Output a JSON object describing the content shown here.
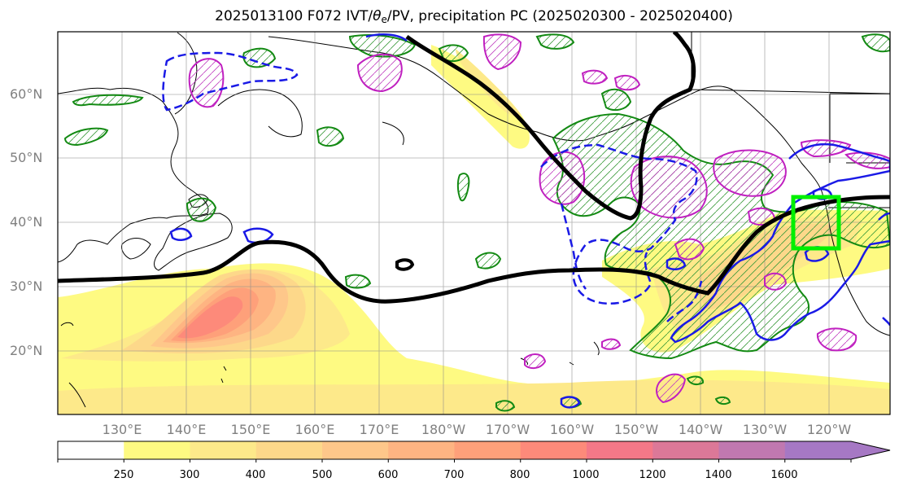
{
  "title": {
    "prefix": "2025013100 F072 IVT/",
    "theta": "θ",
    "sub": "e",
    "suffix": "/PV, precipitation PC (2025020300 - 2025020400)"
  },
  "lat_labels": [
    "60°N",
    "50°N",
    "40°N",
    "30°N",
    "20°N"
  ],
  "lon_labels": [
    "130°E",
    "140°E",
    "150°E",
    "160°E",
    "170°E",
    "180°W",
    "170°W",
    "160°W",
    "150°W",
    "140°W",
    "130°W",
    "120°W"
  ],
  "colorbar": {
    "ticks": [
      "250",
      "300",
      "400",
      "500",
      "600",
      "700",
      "800",
      "1000",
      "1200",
      "1400",
      "1600"
    ],
    "colors": [
      "#ffffff",
      "#fefa82",
      "#fde98a",
      "#fdd88a",
      "#fec78a",
      "#feb482",
      "#fea07a",
      "#fd8a7a",
      "#f47888",
      "#dc7898",
      "#c078b0",
      "#a678c4"
    ]
  },
  "chart_data": {
    "type": "map",
    "projection": "PlateCarree",
    "lon_range": [
      120,
      250
    ],
    "lat_range": [
      10,
      70
    ],
    "gridlines": true,
    "field": "IVT",
    "ivt_levels": [
      250,
      300,
      400,
      500,
      600,
      700,
      800,
      1000,
      1200,
      1400,
      1600
    ],
    "ivt_max_region": {
      "lon": 145,
      "lat": 23
    },
    "target_box": {
      "lon": [
        235,
        242
      ],
      "lat": [
        36,
        44
      ],
      "color": "#00ff00"
    }
  }
}
